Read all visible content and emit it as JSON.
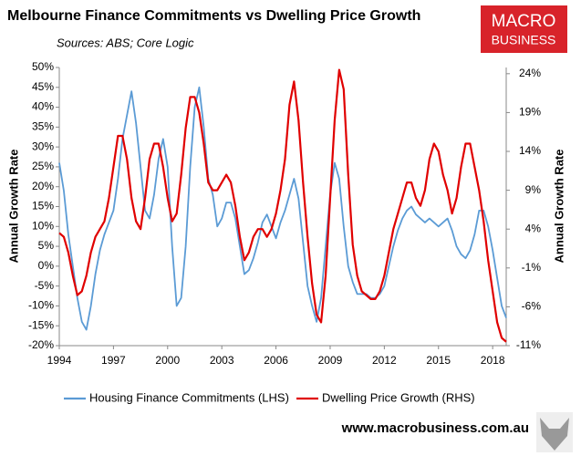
{
  "chart_data": {
    "type": "line",
    "title": "Melbourne Finance Commitments vs Dwelling Price Growth",
    "subtitle": "Sources: ABS; Core Logic",
    "logo": [
      "MACRO",
      "BUSINESS"
    ],
    "footer": "www.macrobusiness.com.au",
    "y_label": "Annual Growth Rate",
    "y2_label": "Annual Growth Rate",
    "x": [
      1994,
      1994.25,
      1994.5,
      1994.75,
      1995,
      1995.25,
      1995.5,
      1995.75,
      1996,
      1996.25,
      1996.5,
      1996.75,
      1997,
      1997.25,
      1997.5,
      1997.75,
      1998,
      1998.25,
      1998.5,
      1998.75,
      1999,
      1999.25,
      1999.5,
      1999.75,
      2000,
      2000.25,
      2000.5,
      2000.75,
      2001,
      2001.25,
      2001.5,
      2001.75,
      2002,
      2002.25,
      2002.5,
      2002.75,
      2003,
      2003.25,
      2003.5,
      2003.75,
      2004,
      2004.25,
      2004.5,
      2004.75,
      2005,
      2005.25,
      2005.5,
      2005.75,
      2006,
      2006.25,
      2006.5,
      2006.75,
      2007,
      2007.25,
      2007.5,
      2007.75,
      2008,
      2008.25,
      2008.5,
      2008.75,
      2009,
      2009.25,
      2009.5,
      2009.75,
      2010,
      2010.25,
      2010.5,
      2010.75,
      2011,
      2011.25,
      2011.5,
      2011.75,
      2012,
      2012.25,
      2012.5,
      2012.75,
      2013,
      2013.25,
      2013.5,
      2013.75,
      2014,
      2014.25,
      2014.5,
      2014.75,
      2015,
      2015.25,
      2015.5,
      2015.75,
      2016,
      2016.25,
      2016.5,
      2016.75,
      2017,
      2017.25,
      2017.5,
      2017.75,
      2018,
      2018.25,
      2018.5,
      2018.75
    ],
    "series": [
      {
        "name": "Housing Finance Commitments (LHS)",
        "color": "#5b9bd5",
        "values": [
          26,
          19,
          8,
          0,
          -8,
          -14,
          -16,
          -10,
          -2,
          4,
          8,
          11,
          14,
          22,
          32,
          38,
          44,
          36,
          25,
          14,
          12,
          18,
          27,
          32,
          25,
          5,
          -10,
          -8,
          5,
          25,
          40,
          45,
          35,
          22,
          18,
          10,
          12,
          16,
          16,
          12,
          5,
          -2,
          -1,
          2,
          6,
          11,
          13,
          10,
          7,
          11,
          14,
          18,
          22,
          17,
          6,
          -5,
          -10,
          -14,
          -8,
          5,
          18,
          26,
          22,
          10,
          0,
          -4,
          -7,
          -7,
          -7,
          -8,
          -8,
          -7,
          -5,
          0,
          5,
          9,
          12,
          14,
          15,
          13,
          12,
          11,
          12,
          11,
          10,
          11,
          12,
          9,
          5,
          3,
          2,
          4,
          8,
          14,
          14,
          10,
          4,
          -3,
          -10,
          -13
        ]
      },
      {
        "name": "Dwelling Price Growth (RHS)",
        "color": "#e00000",
        "axis": "y2",
        "values": [
          3.5,
          3,
          1,
          -2,
          -4.5,
          -4,
          -2,
          1,
          3,
          4,
          5,
          8,
          12,
          16,
          16,
          13,
          8,
          5,
          4,
          8,
          13,
          15,
          15,
          12,
          8,
          5,
          6,
          11,
          17,
          21,
          21,
          19,
          15,
          10,
          9,
          9,
          10,
          11,
          10,
          7,
          3,
          0,
          1,
          3,
          4,
          4,
          3,
          4,
          6,
          9,
          13,
          20,
          23,
          18,
          10,
          3,
          -3,
          -7,
          -8,
          -2,
          8,
          18,
          24.5,
          22,
          11,
          2,
          -2,
          -4,
          -4.5,
          -5,
          -5,
          -4,
          -2,
          1,
          4,
          6,
          8,
          10,
          10,
          8,
          7,
          9,
          13,
          15,
          14,
          11,
          9,
          6,
          8,
          12,
          15,
          15,
          12,
          9,
          5,
          0,
          -4,
          -8,
          -10,
          -10.5
        ]
      }
    ],
    "xlim": [
      1994,
      2018.75
    ],
    "xticks": [
      1994,
      1997,
      2000,
      2003,
      2006,
      2009,
      2012,
      2015,
      2018
    ],
    "ylim": [
      -20,
      50
    ],
    "yticks": [
      {
        "value": -20,
        "label": "-20%"
      },
      {
        "value": -15,
        "label": "-15%"
      },
      {
        "value": -10,
        "label": "-10%"
      },
      {
        "value": -5,
        "label": "-5%"
      },
      {
        "value": 0,
        "label": "0%"
      },
      {
        "value": 5,
        "label": "5%"
      },
      {
        "value": 10,
        "label": "10%"
      },
      {
        "value": 15,
        "label": "15%"
      },
      {
        "value": 20,
        "label": "20%"
      },
      {
        "value": 25,
        "label": "25%"
      },
      {
        "value": 30,
        "label": "30%"
      },
      {
        "value": 35,
        "label": "35%"
      },
      {
        "value": 40,
        "label": "40%"
      },
      {
        "value": 45,
        "label": "45%"
      },
      {
        "value": 50,
        "label": "50%"
      }
    ],
    "y2lim": [
      -11,
      24.8
    ],
    "y2ticks": [
      {
        "value": -11,
        "label": "-11%"
      },
      {
        "value": -6,
        "label": "-6%"
      },
      {
        "value": -1,
        "label": "-1%"
      },
      {
        "value": 4,
        "label": "4%"
      },
      {
        "value": 9,
        "label": "9%"
      },
      {
        "value": 14,
        "label": "14%"
      },
      {
        "value": 19,
        "label": "19%"
      },
      {
        "value": 24,
        "label": "24%"
      }
    ]
  }
}
